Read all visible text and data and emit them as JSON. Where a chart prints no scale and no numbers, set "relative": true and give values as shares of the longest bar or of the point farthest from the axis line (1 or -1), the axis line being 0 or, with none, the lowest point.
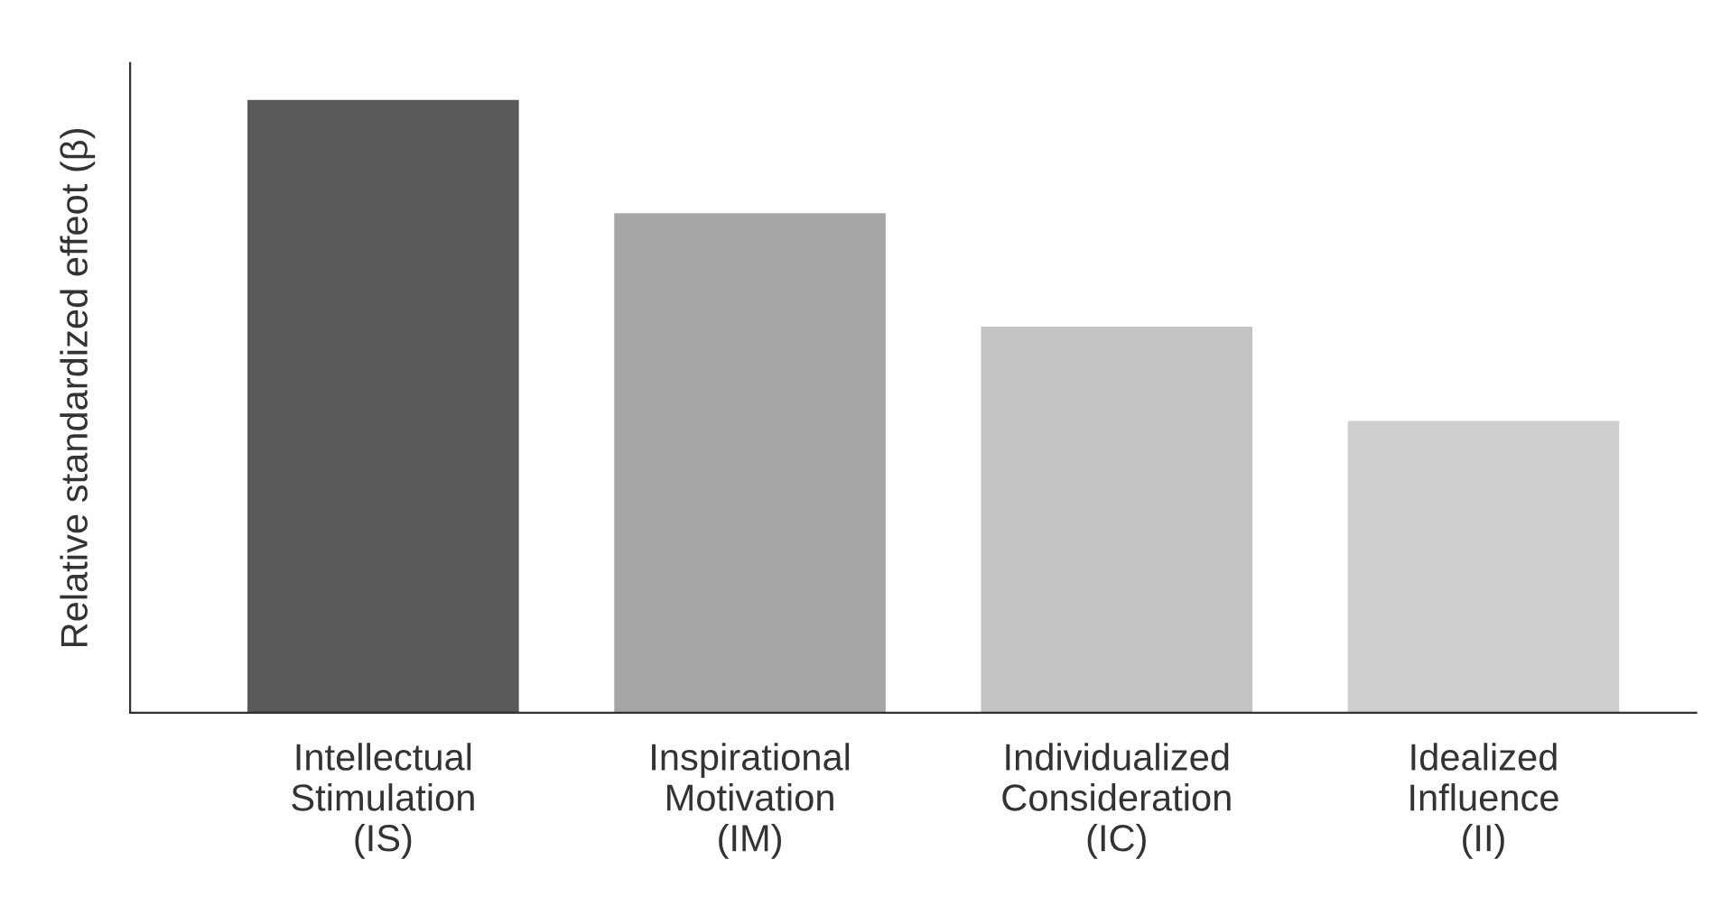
{
  "chart_data": {
    "type": "bar",
    "ylabel": "Relative standardized effeot (β)",
    "categories": [
      "Intellectual\nStimulation\n(IS)",
      "Inspirational\nMotivation\n(IM)",
      "Individualized\nConsideration\n(IC)",
      "Idealized\nInfluence\n(II)"
    ],
    "values": [
      1,
      0.815,
      0.63,
      0.476
    ],
    "colors": [
      "#5a5a5a",
      "#a6a6a6",
      "#c3c3c3",
      "#cfcfcf"
    ],
    "relative": true,
    "grid": false,
    "legend": false
  }
}
